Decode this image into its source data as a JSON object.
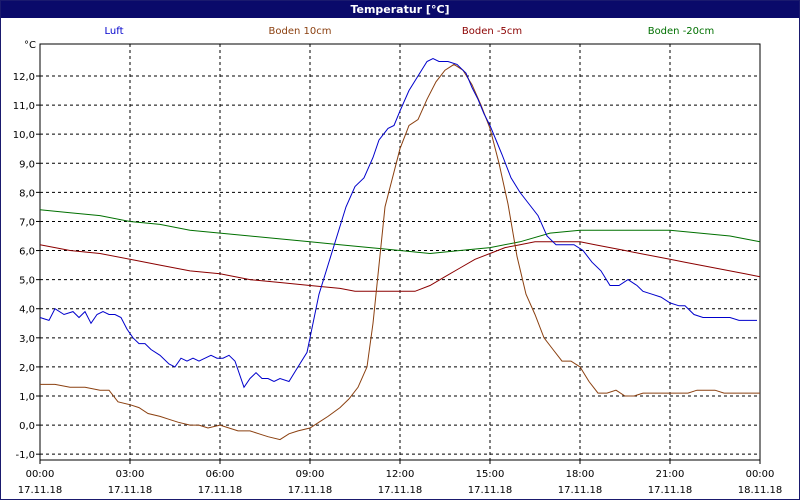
{
  "window": {
    "title": "Temperatur [°C]",
    "title_bar_color": "#0a0a6a"
  },
  "chart_data": {
    "type": "line",
    "ylabel": "°C",
    "ylim": [
      -1.2,
      13.1
    ],
    "xlim": [
      0,
      24
    ],
    "grid": true,
    "legend_placement": "top",
    "yticks": [
      -1.0,
      0.0,
      1.0,
      2.0,
      3.0,
      4.0,
      5.0,
      6.0,
      7.0,
      8.0,
      9.0,
      10.0,
      11.0,
      12.0
    ],
    "ytick_labels": [
      "-1,0",
      "0,0",
      "1,0",
      "2,0",
      "3,0",
      "4,0",
      "5,0",
      "6,0",
      "7,0",
      "8,0",
      "9,0",
      "10,0",
      "11,0",
      "12,0"
    ],
    "xticks": [
      0,
      3,
      6,
      9,
      12,
      15,
      18,
      21,
      24
    ],
    "xtick_time_labels": [
      "00:00",
      "03:00",
      "06:00",
      "09:00",
      "12:00",
      "15:00",
      "18:00",
      "21:00",
      "00:00"
    ],
    "xtick_date_labels": [
      "17.11.18",
      "17.11.18",
      "17.11.18",
      "17.11.18",
      "17.11.18",
      "17.11.18",
      "17.11.18",
      "17.11.18",
      "18.11.18"
    ],
    "series": [
      {
        "name": "Luft",
        "color": "#0000cc",
        "x": [
          0,
          0.3,
          0.5,
          0.8,
          1.1,
          1.3,
          1.5,
          1.7,
          1.9,
          2.1,
          2.3,
          2.5,
          2.7,
          2.9,
          3.1,
          3.3,
          3.5,
          3.7,
          4.0,
          4.3,
          4.5,
          4.7,
          4.9,
          5.1,
          5.3,
          5.5,
          5.7,
          5.9,
          6.1,
          6.3,
          6.5,
          6.8,
          7.0,
          7.2,
          7.4,
          7.6,
          7.8,
          8.0,
          8.3,
          8.6,
          8.9,
          9.1,
          9.3,
          9.6,
          9.9,
          10.2,
          10.5,
          10.8,
          11.1,
          11.3,
          11.6,
          11.8,
          12.0,
          12.3,
          12.6,
          12.9,
          13.1,
          13.3,
          13.6,
          13.9,
          14.2,
          14.4,
          14.6,
          14.8,
          15.0,
          15.2,
          15.4,
          15.7,
          16.0,
          16.3,
          16.6,
          16.9,
          17.2,
          17.5,
          17.8,
          18.1,
          18.4,
          18.7,
          19.0,
          19.3,
          19.6,
          19.9,
          20.1,
          20.4,
          20.7,
          21.0,
          21.3,
          21.5,
          21.8,
          22.1,
          22.4,
          22.7,
          23.0,
          23.3,
          23.6,
          23.9
        ],
        "y": [
          3.7,
          3.6,
          4.0,
          3.8,
          3.9,
          3.7,
          3.9,
          3.5,
          3.8,
          3.9,
          3.8,
          3.8,
          3.7,
          3.3,
          3.0,
          2.8,
          2.8,
          2.6,
          2.4,
          2.1,
          2.0,
          2.3,
          2.2,
          2.3,
          2.2,
          2.3,
          2.4,
          2.3,
          2.3,
          2.4,
          2.2,
          1.3,
          1.6,
          1.8,
          1.6,
          1.6,
          1.5,
          1.6,
          1.5,
          2.0,
          2.5,
          3.5,
          4.5,
          5.5,
          6.5,
          7.5,
          8.2,
          8.5,
          9.2,
          9.8,
          10.2,
          10.3,
          10.8,
          11.5,
          12.0,
          12.5,
          12.6,
          12.5,
          12.5,
          12.4,
          12.1,
          11.6,
          11.2,
          10.7,
          10.3,
          9.8,
          9.3,
          8.5,
          8.0,
          7.6,
          7.2,
          6.5,
          6.2,
          6.2,
          6.2,
          6.0,
          5.6,
          5.3,
          4.8,
          4.8,
          5.0,
          4.8,
          4.6,
          4.5,
          4.4,
          4.2,
          4.1,
          4.1,
          3.8,
          3.7,
          3.7,
          3.7,
          3.7,
          3.6,
          3.6,
          3.6
        ]
      },
      {
        "name": "Boden 10cm",
        "color": "#8b4010",
        "x": [
          0,
          0.5,
          1.0,
          1.5,
          2.0,
          2.3,
          2.6,
          3.0,
          3.3,
          3.6,
          4.0,
          4.3,
          4.6,
          5.0,
          5.3,
          5.6,
          6.0,
          6.3,
          6.6,
          7.0,
          7.3,
          7.6,
          8.0,
          8.3,
          8.6,
          9.0,
          9.3,
          9.6,
          10.0,
          10.3,
          10.6,
          10.9,
          11.1,
          11.3,
          11.5,
          11.7,
          12.0,
          12.3,
          12.6,
          12.9,
          13.2,
          13.5,
          13.8,
          14.1,
          14.4,
          14.7,
          15.0,
          15.3,
          15.6,
          15.9,
          16.2,
          16.5,
          16.8,
          17.1,
          17.4,
          17.7,
          18.0,
          18.3,
          18.6,
          18.9,
          19.2,
          19.5,
          19.8,
          20.1,
          20.4,
          20.7,
          21.0,
          21.3,
          21.6,
          21.9,
          22.2,
          22.5,
          22.8,
          23.1,
          23.4,
          23.7,
          24.0
        ],
        "y": [
          1.4,
          1.4,
          1.3,
          1.3,
          1.2,
          1.2,
          0.8,
          0.7,
          0.6,
          0.4,
          0.3,
          0.2,
          0.1,
          0.0,
          0.0,
          -0.1,
          0.0,
          -0.1,
          -0.2,
          -0.2,
          -0.3,
          -0.4,
          -0.5,
          -0.3,
          -0.2,
          -0.1,
          0.1,
          0.3,
          0.6,
          0.9,
          1.3,
          2.0,
          3.5,
          5.5,
          7.5,
          8.3,
          9.5,
          10.3,
          10.5,
          11.2,
          11.8,
          12.2,
          12.4,
          12.2,
          11.7,
          11.0,
          10.2,
          9.0,
          7.6,
          5.8,
          4.5,
          3.8,
          3.0,
          2.6,
          2.2,
          2.2,
          2.0,
          1.5,
          1.1,
          1.1,
          1.2,
          1.0,
          1.0,
          1.1,
          1.1,
          1.1,
          1.1,
          1.1,
          1.1,
          1.2,
          1.2,
          1.2,
          1.1,
          1.1,
          1.1,
          1.1,
          1.1
        ]
      },
      {
        "name": "Boden -5cm",
        "color": "#8b0000",
        "x": [
          0,
          1.0,
          2.0,
          3.0,
          4.0,
          5.0,
          6.0,
          7.0,
          8.0,
          9.0,
          10.0,
          10.5,
          11.0,
          11.5,
          12.0,
          12.5,
          13.0,
          13.5,
          14.0,
          14.5,
          15.0,
          15.5,
          16.0,
          16.5,
          17.0,
          17.5,
          18.0,
          18.5,
          19.0,
          19.5,
          20.0,
          20.5,
          21.0,
          21.5,
          22.0,
          22.5,
          23.0,
          23.5,
          24.0
        ],
        "y": [
          6.2,
          6.0,
          5.9,
          5.7,
          5.5,
          5.3,
          5.2,
          5.0,
          4.9,
          4.8,
          4.7,
          4.6,
          4.6,
          4.6,
          4.6,
          4.6,
          4.8,
          5.1,
          5.4,
          5.7,
          5.9,
          6.1,
          6.2,
          6.3,
          6.3,
          6.3,
          6.3,
          6.2,
          6.1,
          6.0,
          5.9,
          5.8,
          5.7,
          5.6,
          5.5,
          5.4,
          5.3,
          5.2,
          5.1
        ]
      },
      {
        "name": "Boden -20cm",
        "color": "#007000",
        "x": [
          0,
          1.0,
          2.0,
          3.0,
          4.0,
          5.0,
          6.0,
          7.0,
          8.0,
          9.0,
          10.0,
          11.0,
          12.0,
          13.0,
          14.0,
          15.0,
          16.0,
          17.0,
          18.0,
          19.0,
          20.0,
          21.0,
          22.0,
          23.0,
          24.0
        ],
        "y": [
          7.4,
          7.3,
          7.2,
          7.0,
          6.9,
          6.7,
          6.6,
          6.5,
          6.4,
          6.3,
          6.2,
          6.1,
          6.0,
          5.9,
          6.0,
          6.1,
          6.3,
          6.6,
          6.7,
          6.7,
          6.7,
          6.7,
          6.6,
          6.5,
          6.3
        ]
      }
    ]
  }
}
